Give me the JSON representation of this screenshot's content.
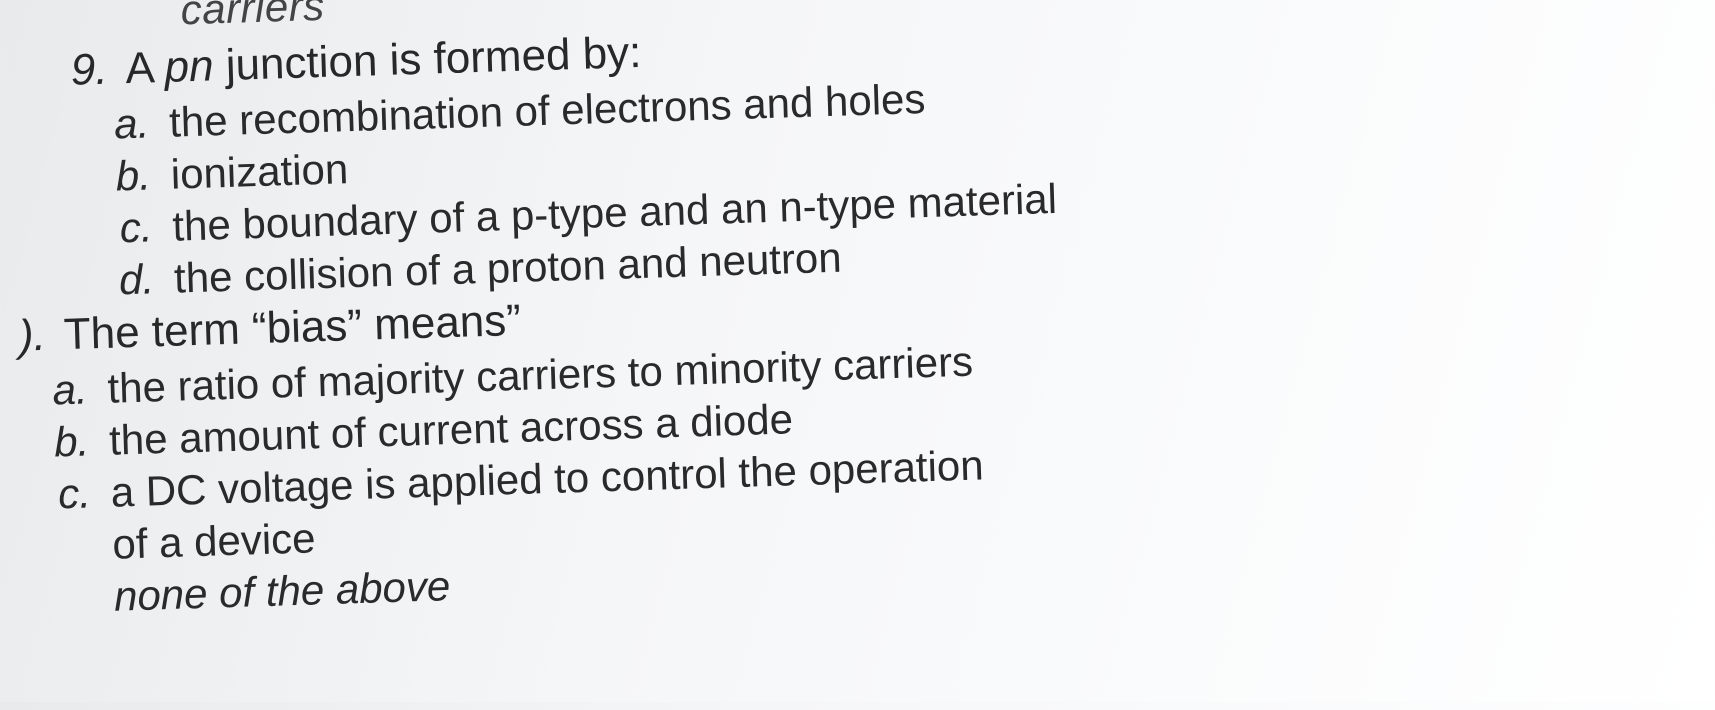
{
  "page": {
    "background_gradient": [
      "#e8eaec",
      "#f5f6f8",
      "#fafbfc",
      "#ffffff"
    ],
    "text_color": "#2a2a2a",
    "font_family": "Arial",
    "base_fontsize": 42,
    "rotation_deg": -1.8
  },
  "fragment_top": "carriers",
  "q9": {
    "number": "9.",
    "stem_prefix": "A ",
    "stem_italic": "pn",
    "stem_suffix": " junction is formed by:",
    "options": {
      "a": {
        "label": "a.",
        "text": "the recombination of electrons and holes"
      },
      "b": {
        "label": "b.",
        "text": "ionization"
      },
      "c": {
        "label": "c.",
        "text": "the boundary of a p-type and an n-type material"
      },
      "d": {
        "label": "d.",
        "text": "the collision of a proton and neutron"
      }
    }
  },
  "q10": {
    "number": ").",
    "stem": "The term “bias” means”",
    "options": {
      "a": {
        "label": "a.",
        "text": "the ratio of majority carriers to minority carriers"
      },
      "b": {
        "label": "b.",
        "text": "the amount of current across a diode"
      },
      "c": {
        "label": "c.",
        "text": "a DC voltage is applied to control the operation",
        "continuation": "of a device"
      },
      "d": {
        "text": "none of the above"
      }
    }
  }
}
